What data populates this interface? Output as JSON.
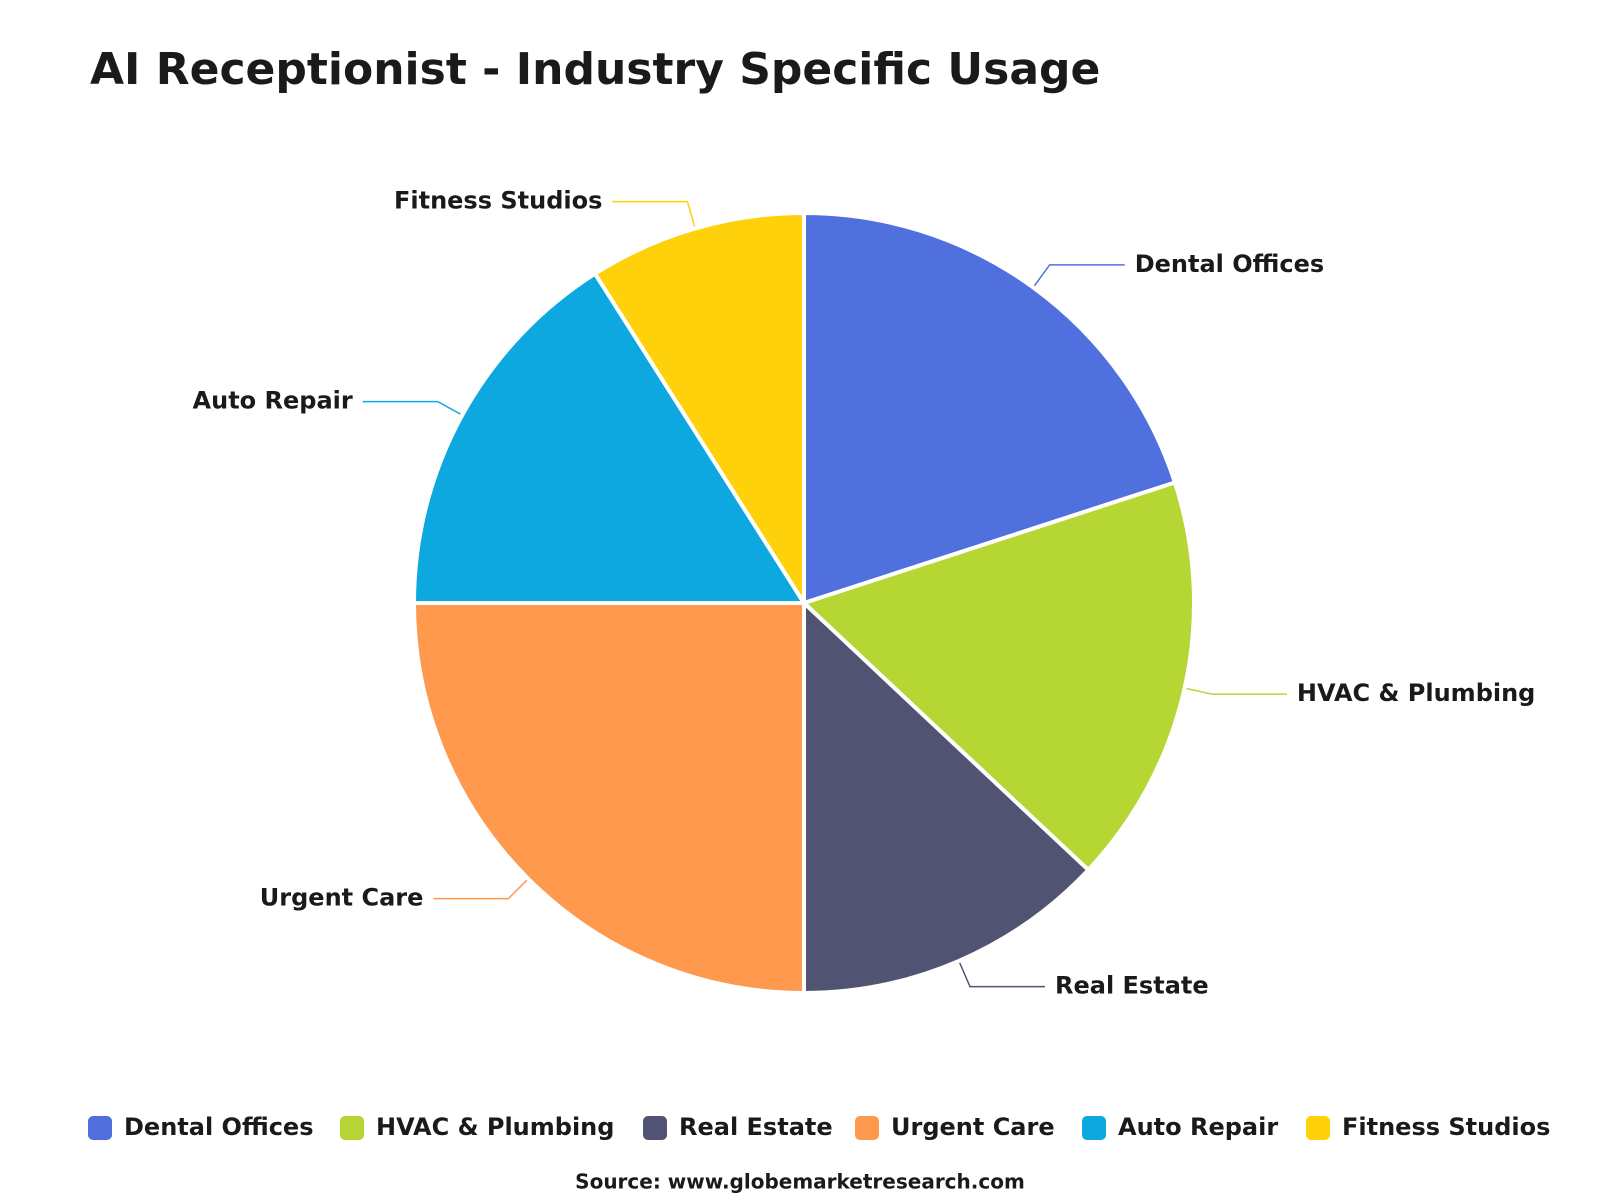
{
  "chart_data": {
    "type": "pie",
    "title": "AI Receptionist - Industry Specific Usage",
    "categories": [
      "Dental Offices",
      "HVAC & Plumbing",
      "Real Estate",
      "Urgent Care",
      "Auto Repair",
      "Fitness Studios"
    ],
    "values": [
      20,
      17,
      13,
      25,
      16,
      9
    ],
    "colors": [
      "#5070dd",
      "#b6d634",
      "#505372",
      "#ff994d",
      "#0ca8df",
      "#ffd10a"
    ],
    "legend": "bottom",
    "source": "Source: www.globemarketresearch.com"
  }
}
